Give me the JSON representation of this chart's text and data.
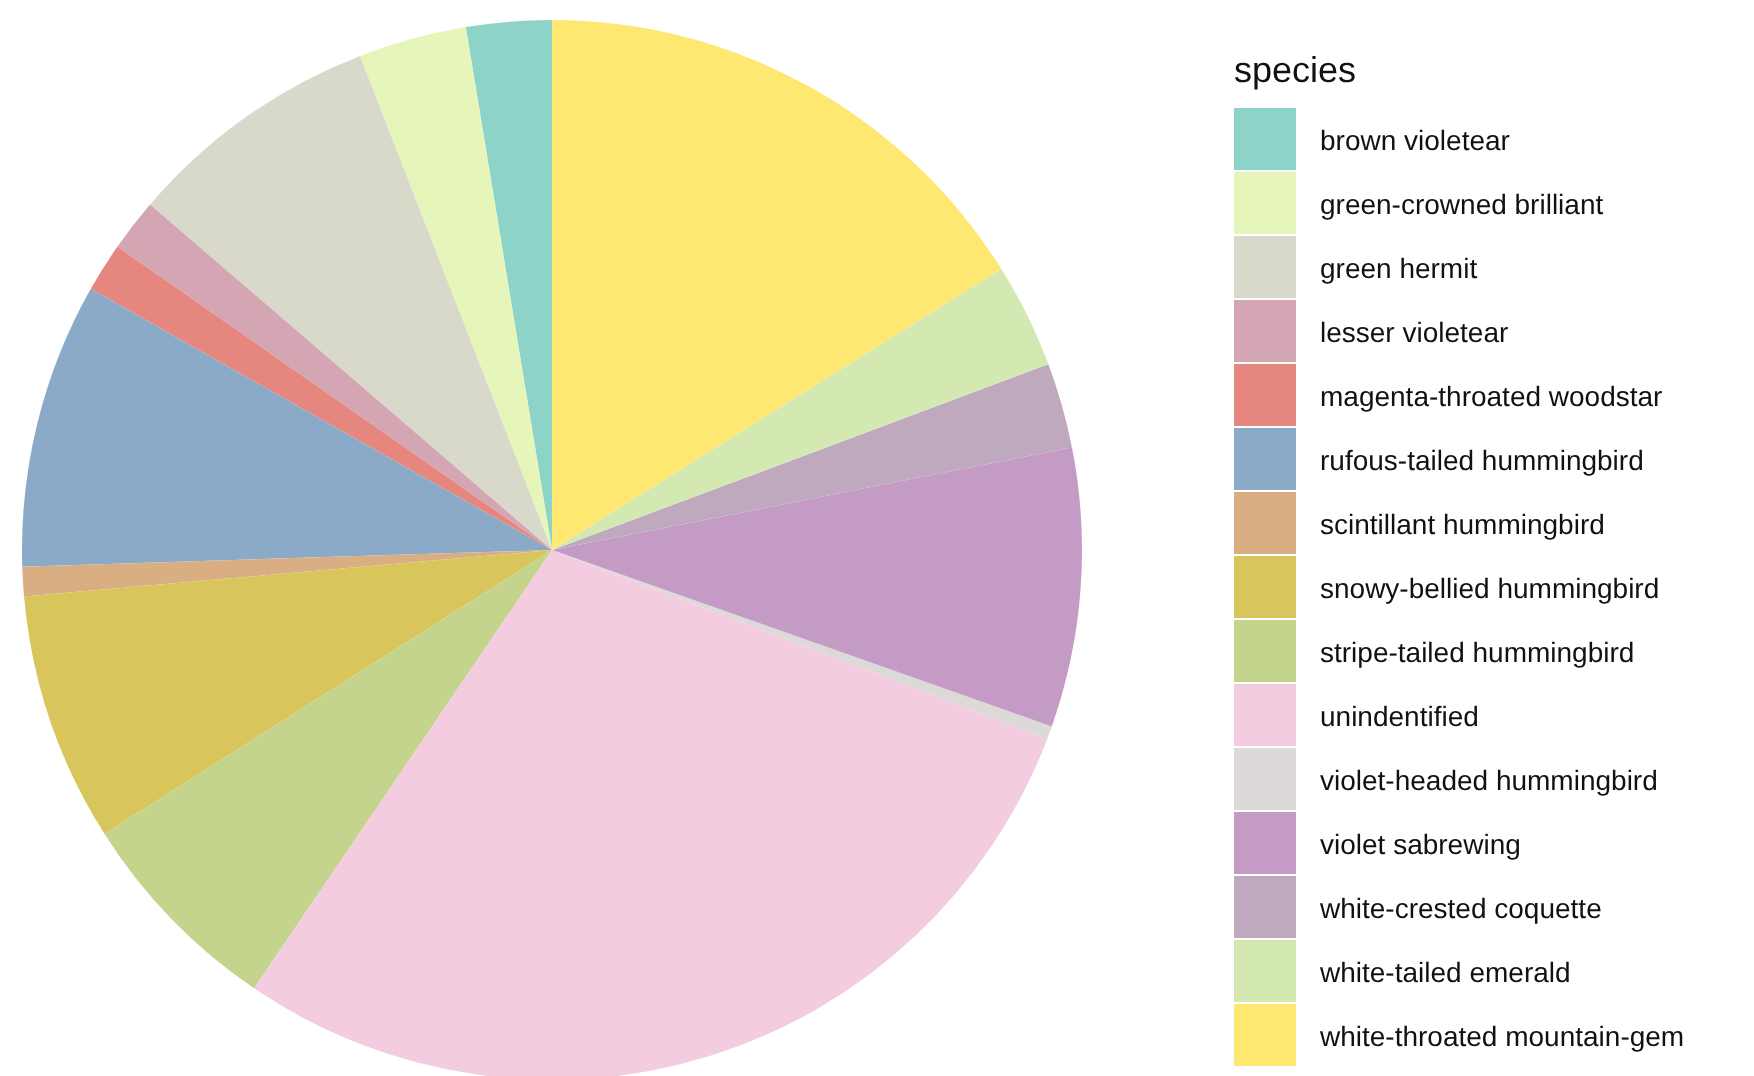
{
  "chart_data": {
    "type": "pie",
    "legend_title": "species",
    "legend": "right",
    "categories": [
      "brown violetear",
      "green-crowned brilliant",
      "green hermit",
      "lesser violetear",
      "magenta-throated woodstar",
      "rufous-tailed hummingbird",
      "scintillant hummingbird",
      "snowy-bellied hummingbird",
      "stripe-tailed hummingbird",
      "unindentified",
      "violet-headed hummingbird",
      "violet sabrewing",
      "white-crested coquette",
      "white-tailed emerald",
      "white-throated mountain-gem"
    ],
    "values": [
      2.6,
      3.3,
      7.8,
      1.6,
      1.5,
      8.7,
      0.9,
      7.6,
      6.5,
      28.7,
      0.4,
      8.5,
      2.6,
      3.2,
      16.1
    ],
    "colors": [
      "#8dd3c7",
      "#e6f5b9",
      "#d9d9cb",
      "#d4a6b4",
      "#e5877f",
      "#8aaac8",
      "#d9ae82",
      "#d8c65d",
      "#c4d48d",
      "#f3cce0",
      "#dcd9d8",
      "#c49bc5",
      "#bfa9bf",
      "#d3e9b1",
      "#ffe872"
    ]
  }
}
